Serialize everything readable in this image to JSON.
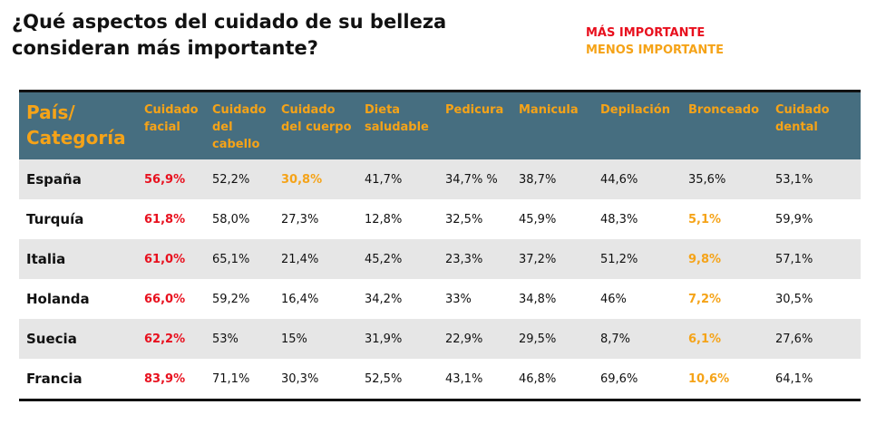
{
  "title": "¿Qué aspectos del cuidado de su belleza consideran más importante?",
  "legend": {
    "most": "MÁS IMPORTANTE",
    "least": "MENOS IMPORTANTE"
  },
  "colors": {
    "header_bg": "#466e80",
    "header_text": "#f5a318",
    "most": "#e8101e",
    "least": "#f5a318",
    "shade": "#e6e6e6"
  },
  "header": {
    "first": "País/ Categoría",
    "columns": [
      "Cuidado facial",
      "Cuidado del cabello",
      "Cuidado del cuerpo",
      "Dieta saludable",
      "Pedicura",
      "Manicula",
      "Depilación",
      "Bronceado",
      "Cuidado dental"
    ]
  },
  "rows": [
    {
      "country": "España",
      "values": [
        "56,9%",
        "52,2%",
        "30,8%",
        "41,7%",
        "34,7% %",
        "38,7%",
        "44,6%",
        "35,6%",
        "53,1%"
      ]
    },
    {
      "country": "Turquía",
      "values": [
        "61,8%",
        "58,0%",
        "27,3%",
        "12,8%",
        "32,5%",
        "45,9%",
        "48,3%",
        "5,1%",
        "59,9%"
      ]
    },
    {
      "country": "Italia",
      "values": [
        "61,0%",
        "65,1%",
        "21,4%",
        "45,2%",
        "23,3%",
        "37,2%",
        "51,2%",
        "9,8%",
        "57,1%"
      ]
    },
    {
      "country": "Holanda",
      "values": [
        "66,0%",
        "59,2%",
        "16,4%",
        "34,2%",
        "33%",
        "34,8%",
        "46%",
        "7,2%",
        "30,5%"
      ]
    },
    {
      "country": "Suecia",
      "values": [
        "62,2%",
        "53%",
        "15%",
        "31,9%",
        "22,9%",
        "29,5%",
        "8,7%",
        "6,1%",
        "27,6%"
      ]
    },
    {
      "country": "Francia",
      "values": [
        "83,9%",
        "71,1%",
        "30,3%",
        "52,5%",
        "43,1%",
        "46,8%",
        "69,6%",
        "10,6%",
        "64,1%"
      ]
    }
  ]
}
